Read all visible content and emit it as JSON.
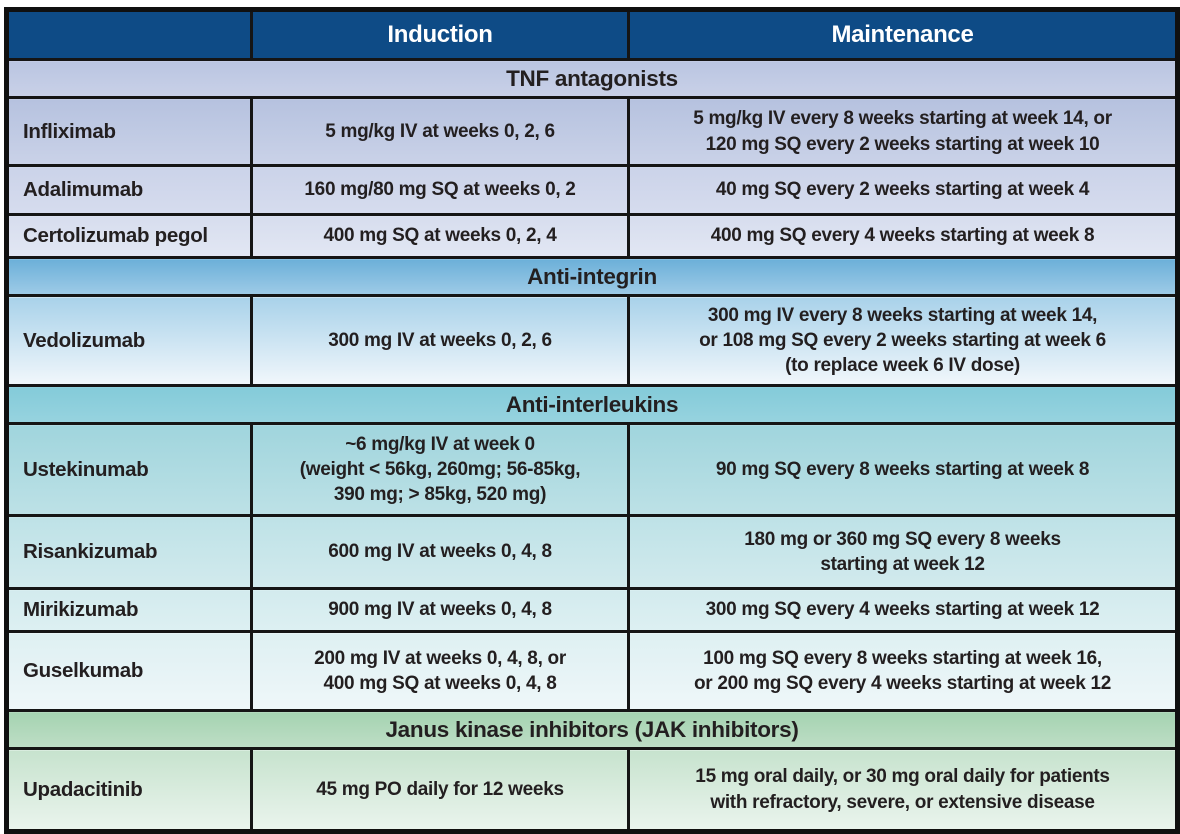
{
  "header": {
    "blank": "",
    "induction": "Induction",
    "maintenance": "Maintenance"
  },
  "sections": [
    {
      "title": "TNF antagonists",
      "rows": [
        {
          "drug": "Infliximab",
          "induction": "5 mg/kg IV at weeks 0, 2, 6",
          "maintenance": "5 mg/kg IV every 8 weeks starting at week 14, or\n120 mg SQ every 2 weeks starting at week 10"
        },
        {
          "drug": "Adalimumab",
          "induction": "160 mg/80 mg SQ at weeks 0, 2",
          "maintenance": "40 mg SQ every 2 weeks starting at week 4"
        },
        {
          "drug": "Certolizumab pegol",
          "induction": "400 mg SQ at weeks 0, 2, 4",
          "maintenance": "400 mg SQ every 4 weeks starting at week 8"
        }
      ]
    },
    {
      "title": "Anti-integrin",
      "rows": [
        {
          "drug": "Vedolizumab",
          "induction": "300 mg IV at weeks 0, 2, 6",
          "maintenance": "300 mg IV every 8 weeks starting at week 14,\nor 108 mg SQ every 2 weeks starting at week 6\n(to replace week 6 IV dose)"
        }
      ]
    },
    {
      "title": "Anti-interleukins",
      "rows": [
        {
          "drug": "Ustekinumab",
          "induction": "~6 mg/kg IV at week 0\n(weight < 56kg, 260mg; 56-85kg,\n390 mg; > 85kg, 520 mg)",
          "maintenance": "90 mg SQ every 8 weeks starting at week 8"
        },
        {
          "drug": "Risankizumab",
          "induction": "600 mg IV at weeks 0, 4, 8",
          "maintenance": "180 mg or 360 mg SQ every 8 weeks\nstarting at week 12"
        },
        {
          "drug": "Mirikizumab",
          "induction": "900 mg IV at weeks 0, 4, 8",
          "maintenance": "300 mg SQ every 4 weeks starting at week 12"
        },
        {
          "drug": "Guselkumab",
          "induction": "200 mg IV at weeks 0, 4, 8, or\n400 mg SQ at weeks 0, 4, 8",
          "maintenance": "100 mg SQ every 8 weeks starting at week 16,\nor 200 mg SQ every 4 weeks starting at week 12"
        }
      ]
    },
    {
      "title": "Janus kinase inhibitors (JAK inhibitors)",
      "rows": [
        {
          "drug": "Upadacitinib",
          "induction": "45 mg PO daily for 12 weeks",
          "maintenance": "15 mg oral daily, or 30 mg oral daily for patients\nwith refractory, severe, or extensive disease"
        }
      ]
    }
  ],
  "colors": {
    "header_bg": "#0e4b86",
    "header_text": "#ffffff",
    "cell_text": "#231f20",
    "border": "#151515",
    "tnf_band": "#c1cbe4",
    "anti_integrin_band": "#7fbbde",
    "anti_interleukin_band": "#8dcfdc",
    "jak_band": "#b0d8ba",
    "tnf_rows_fade": [
      "#b6c2df",
      "#e2e7f3"
    ],
    "anti_integrin_rows_fade": [
      "#a9d2ea",
      "#f1f7fb"
    ],
    "anti_interleukin_rows_fade": [
      "#a0d5dd",
      "#eff7f9"
    ],
    "jak_rows_fade": [
      "#c7e3ce",
      "#eaf4ed"
    ]
  }
}
